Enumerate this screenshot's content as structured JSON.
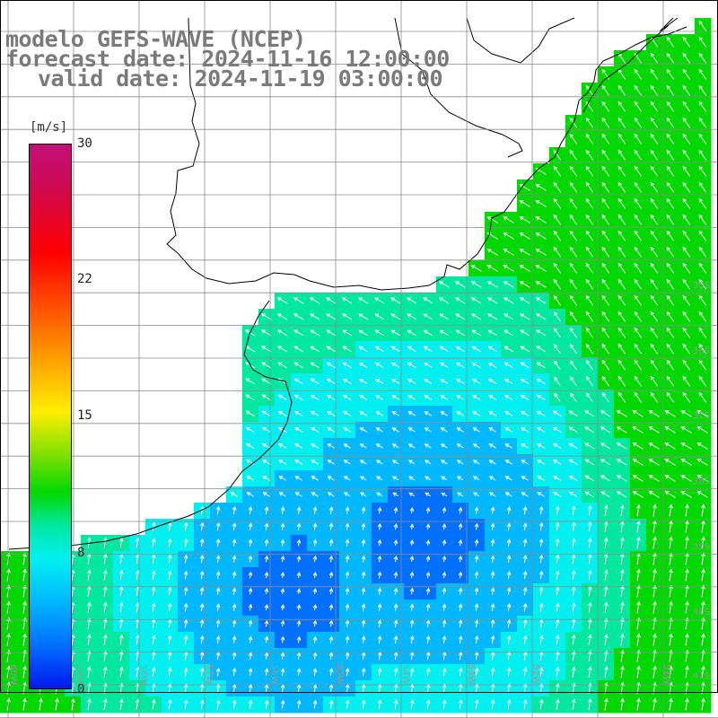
{
  "titles": {
    "line1": "modelo GEFS-WAVE (NCEP)",
    "line2": "forecast date: 2024-11-16 12:00:00",
    "line3": "valid date: 2024-11-19 03:00:00"
  },
  "colorbar": {
    "unit": "[m/s]",
    "ticks": [
      "30",
      "22",
      "15",
      "8",
      "0"
    ],
    "tick_values": [
      30,
      22,
      15,
      8,
      0
    ],
    "min": 0,
    "max": 30,
    "colors": [
      "#0018f0",
      "#0070ff",
      "#00b8ff",
      "#00f0f0",
      "#00e8a0",
      "#00d800",
      "#80e000",
      "#ffee00",
      "#ff7a00",
      "#ff0000",
      "#cc0a55",
      "#c21079"
    ]
  },
  "map": {
    "lat_labels": [
      "35S",
      "36S",
      "37S",
      "38S",
      "39S",
      "40S",
      "41S"
    ],
    "lon_labels": [
      "60W",
      "59W",
      "58W",
      "57W",
      "56W",
      "55W",
      "54W",
      "53W",
      "52W",
      "51W"
    ],
    "land_color": "#ffffff",
    "grid_color": "#8c8c8c",
    "arrow_color": "#ffffff"
  }
}
